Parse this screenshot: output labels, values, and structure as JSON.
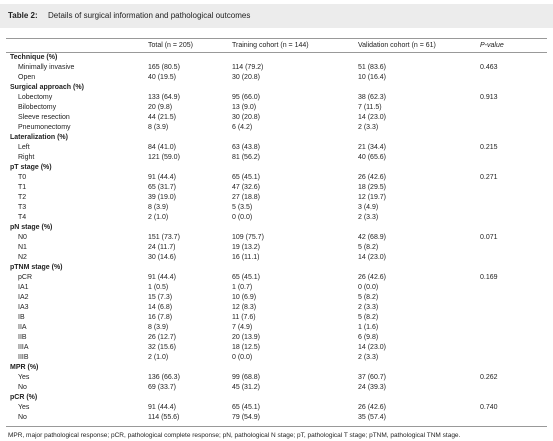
{
  "header": {
    "label": "Table 2:",
    "title": "Details of surgical information and pathological outcomes"
  },
  "table": {
    "columns": [
      "Total (n = 205)",
      "Training cohort (n = 144)",
      "Validation cohort (n = 61)",
      "P-value"
    ],
    "sections": [
      {
        "title": "Technique (%)",
        "rows": [
          [
            "Minimally invasive",
            "165 (80.5)",
            "114 (79.2)",
            "51 (83.6)",
            "0.463"
          ],
          [
            "Open",
            "40 (19.5)",
            "30 (20.8)",
            "10 (16.4)"
          ]
        ]
      },
      {
        "title": "Surgical approach (%)",
        "rows": [
          [
            "Lobectomy",
            "133 (64.9)",
            "95 (66.0)",
            "38 (62.3)",
            "0.913"
          ],
          [
            "Bilobectomy",
            "20 (9.8)",
            "13 (9.0)",
            "7 (11.5)"
          ],
          [
            "Sleeve resection",
            "44 (21.5)",
            "30 (20.8)",
            "14 (23.0)"
          ],
          [
            "Pneumonectomy",
            "8 (3.9)",
            "6 (4.2)",
            "2 (3.3)"
          ]
        ]
      },
      {
        "title": "Lateralization (%)",
        "rows": [
          [
            "Left",
            "84 (41.0)",
            "63 (43.8)",
            "21 (34.4)",
            "0.215"
          ],
          [
            "Right",
            "121 (59.0)",
            "81 (56.2)",
            "40 (65.6)"
          ]
        ]
      },
      {
        "title": "pT stage (%)",
        "rows": [
          [
            "T0",
            "91 (44.4)",
            "65 (45.1)",
            "26 (42.6)",
            "0.271"
          ],
          [
            "T1",
            "65 (31.7)",
            "47 (32.6)",
            "18 (29.5)"
          ],
          [
            "T2",
            "39 (19.0)",
            "27 (18.8)",
            "12 (19.7)"
          ],
          [
            "T3",
            "8 (3.9)",
            "5 (3.5)",
            "3 (4.9)"
          ],
          [
            "T4",
            "2 (1.0)",
            "0 (0.0)",
            "2 (3.3)"
          ]
        ]
      },
      {
        "title": "pN stage (%)",
        "rows": [
          [
            "N0",
            "151 (73.7)",
            "109 (75.7)",
            "42 (68.9)",
            "0.071"
          ],
          [
            "N1",
            "24 (11.7)",
            "19 (13.2)",
            "5 (8.2)"
          ],
          [
            "N2",
            "30 (14.6)",
            "16 (11.1)",
            "14 (23.0)"
          ]
        ]
      },
      {
        "title": "pTNM stage (%)",
        "rows": [
          [
            "pCR",
            "91 (44.4)",
            "65 (45.1)",
            "26 (42.6)",
            "0.169"
          ],
          [
            "IA1",
            "1 (0.5)",
            "1 (0.7)",
            "0 (0.0)"
          ],
          [
            "IA2",
            "15 (7.3)",
            "10 (6.9)",
            "5 (8.2)"
          ],
          [
            "IA3",
            "14 (6.8)",
            "12 (8.3)",
            "2 (3.3)"
          ],
          [
            "IB",
            "16 (7.8)",
            "11 (7.6)",
            "5 (8.2)"
          ],
          [
            "IIA",
            "8 (3.9)",
            "7 (4.9)",
            "1 (1.6)"
          ],
          [
            "IIB",
            "26 (12.7)",
            "20 (13.9)",
            "6 (9.8)"
          ],
          [
            "IIIA",
            "32 (15.6)",
            "18 (12.5)",
            "14 (23.0)"
          ],
          [
            "IIIB",
            "2 (1.0)",
            "0 (0.0)",
            "2 (3.3)"
          ]
        ]
      },
      {
        "title": "MPR (%)",
        "rows": [
          [
            "Yes",
            "136 (66.3)",
            "99 (68.8)",
            "37 (60.7)",
            "0.262"
          ],
          [
            "No",
            "69 (33.7)",
            "45 (31.2)",
            "24 (39.3)"
          ]
        ]
      },
      {
        "title": "pCR (%)",
        "rows": [
          [
            "Yes",
            "91 (44.4)",
            "65 (45.1)",
            "26 (42.6)",
            "0.740"
          ],
          [
            "No",
            "114 (55.6)",
            "79 (54.9)",
            "35 (57.4)"
          ]
        ]
      }
    ]
  },
  "footnote": "MPR, major pathological response; pCR, pathological complete response; pN, pathological N stage; pT, pathological T stage; pTNM, pathological TNM stage."
}
